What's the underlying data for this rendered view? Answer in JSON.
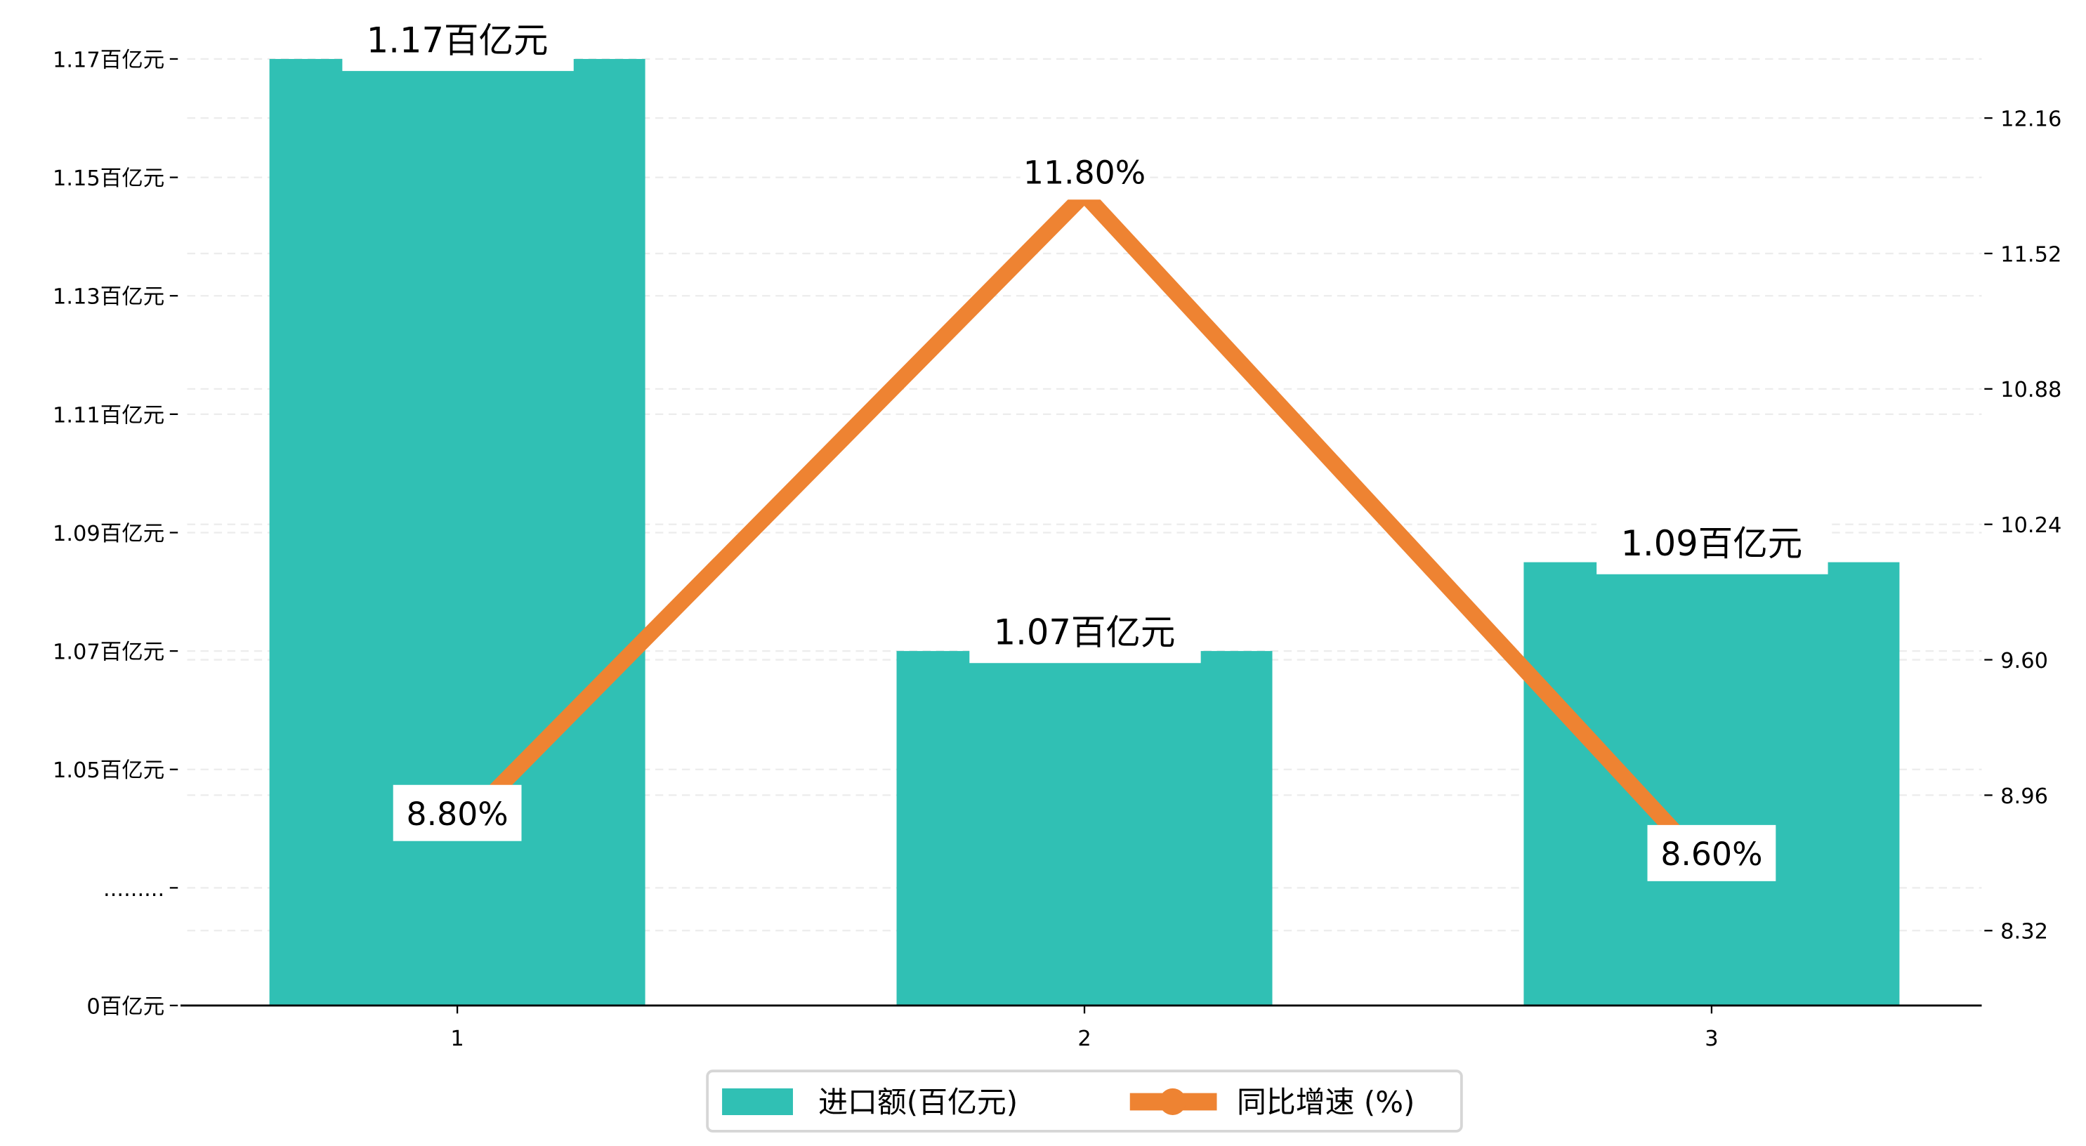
{
  "chart_data": {
    "type": "bar+line",
    "categories": [
      "1",
      "2",
      "3"
    ],
    "series": [
      {
        "name": "进口额(百亿元)",
        "type": "bar",
        "axis": "left",
        "values": [
          1.17,
          1.07,
          1.085
        ],
        "labels": [
          "1.17百亿元",
          "1.07百亿元",
          "1.09百亿元"
        ],
        "color": "#30C0B4"
      },
      {
        "name": "同比增速 (%)",
        "type": "line",
        "axis": "right",
        "values": [
          8.8,
          11.8,
          8.6
        ],
        "labels": [
          "8.80%",
          "11.80%",
          "8.60%"
        ],
        "color": "#EE8332"
      }
    ],
    "left_axis": {
      "broken": true,
      "ticks": [
        {
          "value": 0,
          "label": "0百亿元"
        },
        {
          "value": 1.03,
          "label": "........."
        },
        {
          "value": 1.05,
          "label": "1.05百亿元"
        },
        {
          "value": 1.07,
          "label": "1.07百亿元"
        },
        {
          "value": 1.09,
          "label": "1.09百亿元"
        },
        {
          "value": 1.11,
          "label": "1.11百亿元"
        },
        {
          "value": 1.13,
          "label": "1.13百亿元"
        },
        {
          "value": 1.15,
          "label": "1.15百亿元"
        },
        {
          "value": 1.17,
          "label": "1.17百亿元"
        }
      ]
    },
    "right_axis": {
      "ticks": [
        {
          "value": 8.32,
          "label": "8.32"
        },
        {
          "value": 8.96,
          "label": "8.96"
        },
        {
          "value": 9.6,
          "label": "9.60"
        },
        {
          "value": 10.24,
          "label": "10.24"
        },
        {
          "value": 10.88,
          "label": "10.88"
        },
        {
          "value": 11.52,
          "label": "11.52"
        },
        {
          "value": 12.16,
          "label": "12.16"
        }
      ]
    },
    "grid": true,
    "legend_position": "bottom-center"
  }
}
